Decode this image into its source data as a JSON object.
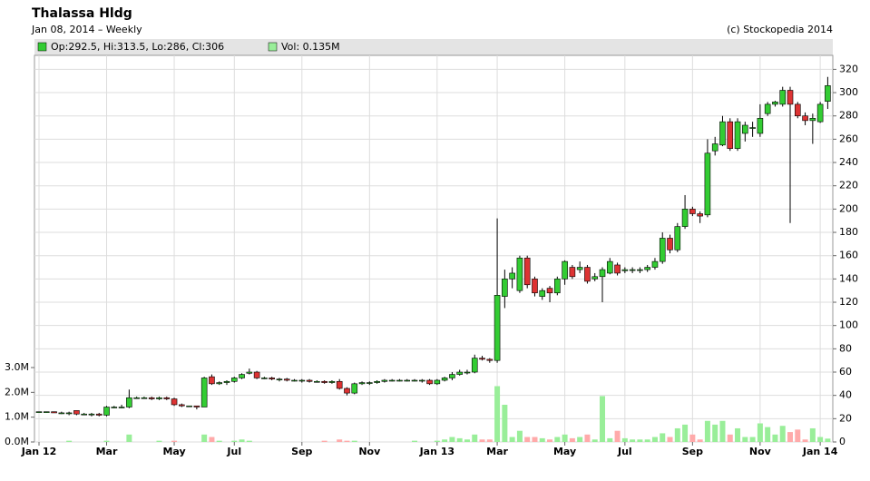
{
  "chart_data": {
    "type": "candlestick",
    "title": "Thalassa Hldg",
    "subtitle": "Jan 08, 2014 – Weekly",
    "credit": "(c) Stockopedia 2014",
    "legend_price": "Op:292.5, Hi:313.5, Lo:286, Cl:306",
    "legend_volume": "Vol: 0.135M",
    "up_color": "#33cc33",
    "down_color": "#dd3333",
    "volume_up_color": "#99ee99",
    "volume_down_color": "#ffaaaa",
    "grid": true,
    "categories": [
      "Jan 12",
      null,
      null,
      null,
      null,
      null,
      null,
      null,
      null,
      "Mar",
      null,
      null,
      null,
      null,
      null,
      null,
      null,
      null,
      "May",
      null,
      null,
      null,
      null,
      null,
      null,
      null,
      "Jul",
      null,
      null,
      null,
      null,
      null,
      null,
      null,
      null,
      "Sep",
      null,
      null,
      null,
      null,
      null,
      null,
      null,
      null,
      "Nov",
      null,
      null,
      null,
      null,
      null,
      null,
      null,
      null,
      "Jan 13",
      null,
      null,
      null,
      null,
      null,
      null,
      null,
      "Mar",
      null,
      null,
      null,
      null,
      null,
      null,
      null,
      null,
      "May",
      null,
      null,
      null,
      null,
      null,
      null,
      null,
      "Jul",
      null,
      null,
      null,
      null,
      null,
      null,
      null,
      null,
      "Sep",
      null,
      null,
      null,
      null,
      null,
      null,
      null,
      null,
      "Nov",
      null,
      null,
      null,
      null,
      null,
      null,
      null,
      "Jan 14",
      null
    ],
    "open": [
      26,
      26,
      26,
      25,
      25,
      27,
      24,
      24,
      24,
      23,
      30,
      30,
      30,
      38,
      38,
      38,
      37,
      38,
      37,
      32,
      31,
      31,
      30,
      56,
      50,
      51,
      52,
      55,
      59,
      60,
      55,
      55,
      54,
      54,
      53,
      53,
      53,
      52,
      52,
      51,
      52,
      46,
      42,
      50,
      51,
      51,
      52,
      53,
      53,
      53,
      53,
      53,
      53,
      50,
      53,
      55,
      58,
      60,
      60,
      72,
      71,
      70,
      125,
      140,
      130,
      158,
      140,
      125,
      132,
      128,
      140,
      150,
      148,
      150,
      140,
      142,
      145,
      152,
      147,
      148,
      148,
      148,
      150,
      155,
      175,
      165,
      185,
      200,
      196,
      195,
      250,
      255,
      275,
      252,
      265,
      270,
      265,
      282,
      290,
      290,
      302,
      290,
      280,
      276,
      275,
      292.5
    ],
    "high": [
      26,
      26,
      26,
      26,
      26,
      27,
      25,
      25,
      25,
      31,
      31,
      32,
      45,
      39,
      39,
      39,
      39,
      39,
      38,
      33,
      31,
      31,
      56,
      58,
      52,
      53,
      56,
      59,
      63,
      61,
      56,
      56,
      55,
      55,
      54,
      54,
      54,
      53,
      53,
      53,
      54,
      47,
      51,
      52,
      52,
      53,
      54,
      54,
      54,
      54,
      54,
      54,
      54,
      54,
      56,
      60,
      62,
      62,
      75,
      74,
      72,
      192,
      148,
      150,
      160,
      160,
      142,
      132,
      134,
      142,
      156,
      152,
      155,
      152,
      145,
      150,
      158,
      154,
      150,
      150,
      150,
      152,
      158,
      180,
      178,
      188,
      212,
      202,
      198,
      260,
      262,
      280,
      278,
      278,
      275,
      275,
      290,
      292,
      293,
      305,
      305,
      292,
      283,
      282,
      292,
      313.5
    ],
    "low": [
      25,
      25,
      25,
      24,
      23,
      23,
      23,
      22,
      22,
      22,
      29,
      29,
      29,
      37,
      37,
      36,
      36,
      36,
      31,
      30,
      30,
      28,
      30,
      49,
      49,
      49,
      51,
      54,
      58,
      54,
      54,
      53,
      52,
      52,
      52,
      51,
      51,
      51,
      50,
      50,
      45,
      40,
      41,
      49,
      49,
      50,
      51,
      52,
      52,
      52,
      52,
      51,
      49,
      49,
      52,
      53,
      57,
      58,
      59,
      70,
      68,
      68,
      115,
      132,
      128,
      132,
      125,
      122,
      120,
      126,
      135,
      140,
      145,
      136,
      138,
      120,
      144,
      143,
      145,
      145,
      145,
      146,
      148,
      153,
      162,
      163,
      183,
      194,
      188,
      193,
      246,
      254,
      250,
      250,
      258,
      262,
      262,
      280,
      288,
      288,
      188,
      278,
      272,
      256,
      274,
      286
    ],
    "close": [
      26,
      26,
      25,
      25,
      25,
      24,
      24,
      24,
      23,
      30,
      30,
      30,
      38,
      38,
      38,
      37,
      38,
      37,
      32,
      31,
      31,
      30,
      55,
      50,
      51,
      52,
      55,
      58,
      60,
      55,
      55,
      54,
      54,
      53,
      53,
      53,
      52,
      52,
      51,
      52,
      46,
      42,
      50,
      51,
      51,
      52,
      53,
      53,
      53,
      53,
      53,
      53,
      50,
      53,
      55,
      58,
      60,
      60,
      72,
      71,
      70,
      126,
      140,
      145,
      158,
      135,
      128,
      130,
      128,
      140,
      155,
      142,
      150,
      138,
      142,
      148,
      155,
      145,
      148,
      148,
      148,
      150,
      155,
      175,
      165,
      185,
      200,
      196,
      194,
      248,
      256,
      275,
      252,
      275,
      272,
      270,
      278,
      290,
      292,
      302,
      290,
      280,
      276,
      278,
      290,
      306
    ],
    "volume": [
      0,
      0,
      0,
      0,
      0.05,
      0,
      0,
      0,
      0,
      0.05,
      0,
      0,
      0.3,
      0,
      0,
      0,
      0.05,
      0,
      0.05,
      0,
      0,
      0,
      0.3,
      0.2,
      0.05,
      0,
      0.05,
      0.1,
      0.05,
      0,
      0,
      0,
      0,
      0,
      0,
      0,
      0,
      0,
      0.05,
      0,
      0.1,
      0.05,
      0.05,
      0,
      0,
      0,
      0,
      0,
      0,
      0,
      0.05,
      0,
      0,
      0.05,
      0.1,
      0.2,
      0.15,
      0.1,
      0.3,
      0.1,
      0.1,
      2.25,
      1.5,
      0.2,
      0.45,
      0.2,
      0.2,
      0.15,
      0.1,
      0.2,
      0.3,
      0.15,
      0.2,
      0.3,
      0.1,
      1.85,
      0.15,
      0.45,
      0.15,
      0.1,
      0.1,
      0.1,
      0.2,
      0.35,
      0.2,
      0.55,
      0.7,
      0.3,
      0.1,
      0.85,
      0.7,
      0.85,
      0.3,
      0.55,
      0.2,
      0.2,
      0.75,
      0.6,
      0.3,
      0.65,
      0.4,
      0.5,
      0.1,
      0.55,
      0.2,
      0.135
    ],
    "ylim": [
      0,
      332
    ],
    "yticks": [
      0,
      20,
      40,
      60,
      80,
      100,
      120,
      140,
      160,
      180,
      200,
      220,
      240,
      260,
      280,
      300,
      320
    ],
    "y2lim": [
      0,
      3
    ],
    "y2ticks": [
      {
        "value": 0,
        "label": "0.0M"
      },
      {
        "value": 1,
        "label": "1.0M"
      },
      {
        "value": 2,
        "label": "2.0M"
      },
      {
        "value": 3,
        "label": "3.0M"
      }
    ]
  }
}
